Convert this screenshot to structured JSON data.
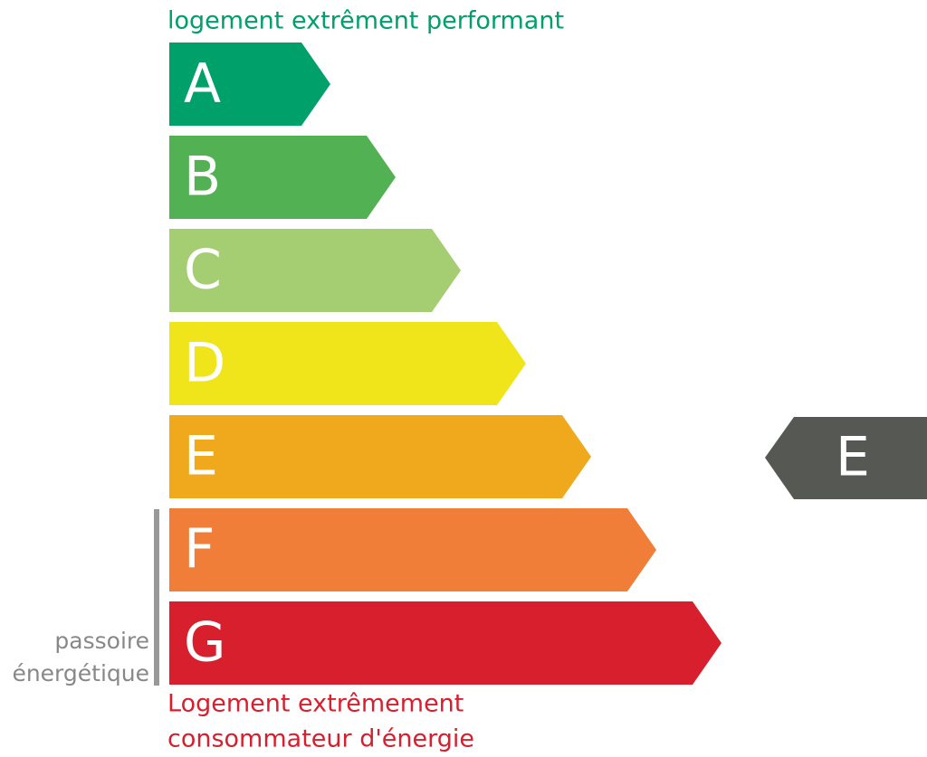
{
  "top_label": "logement extrêment performant",
  "classes": [
    {
      "letter": "A",
      "color": "#00a06b"
    },
    {
      "letter": "B",
      "color": "#52b153"
    },
    {
      "letter": "C",
      "color": "#a5cd72"
    },
    {
      "letter": "D",
      "color": "#f0e51b"
    },
    {
      "letter": "E",
      "color": "#f0a91c"
    },
    {
      "letter": "F",
      "color": "#f07e39"
    },
    {
      "letter": "G",
      "color": "#d71f2e"
    }
  ],
  "side_label": [
    "passoire",
    "énergétique"
  ],
  "bottom_label": [
    "Logement extrêmement",
    "consommateur d'énergie"
  ],
  "indicator": {
    "letter": "E",
    "color": "#555853"
  }
}
